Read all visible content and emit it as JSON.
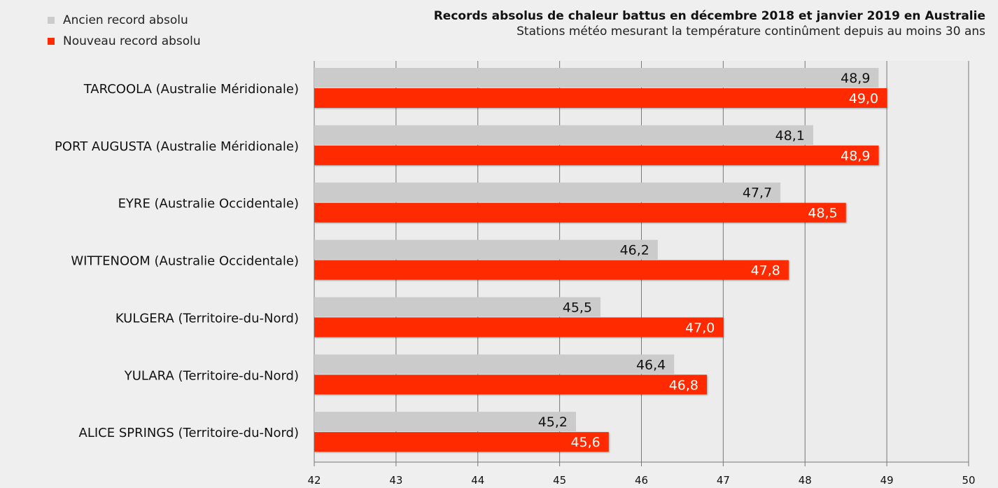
{
  "chart_data": {
    "type": "bar",
    "orientation": "horizontal",
    "title": "Records absolus de chaleur battus en décembre 2018 et janvier 2019 en Australie",
    "subtitle": "Stations météo mesurant la température continûment depuis au moins 30 ans",
    "categories": [
      "TARCOOLA (Australie Méridionale)",
      "PORT AUGUSTA (Australie Méridionale)",
      "EYRE (Australie Occidentale)",
      "WITTENOOM (Australie Occidentale)",
      "KULGERA (Territoire-du-Nord)",
      "YULARA (Territoire-du-Nord)",
      "ALICE SPRINGS (Territoire-du-Nord)"
    ],
    "series": [
      {
        "name": "Ancien record absolu",
        "color": "#cbcbcb",
        "values": [
          48.9,
          48.1,
          47.7,
          46.2,
          45.5,
          46.4,
          45.2
        ],
        "labels": [
          "48,9",
          "48,1",
          "47,7",
          "46,2",
          "45,5",
          "46,4",
          "45,2"
        ]
      },
      {
        "name": "Nouveau record absolu",
        "color": "#ff2a00",
        "values": [
          49.0,
          48.9,
          48.5,
          47.8,
          47.0,
          46.8,
          45.6
        ],
        "labels": [
          "49,0",
          "48,9",
          "48,5",
          "47,8",
          "47,0",
          "46,8",
          "45,6"
        ]
      }
    ],
    "xlim": [
      42,
      50
    ],
    "xticks": [
      "42",
      "43",
      "44",
      "45",
      "46",
      "47",
      "48",
      "49",
      "50"
    ],
    "grid": true,
    "legend_position": "top-left"
  }
}
